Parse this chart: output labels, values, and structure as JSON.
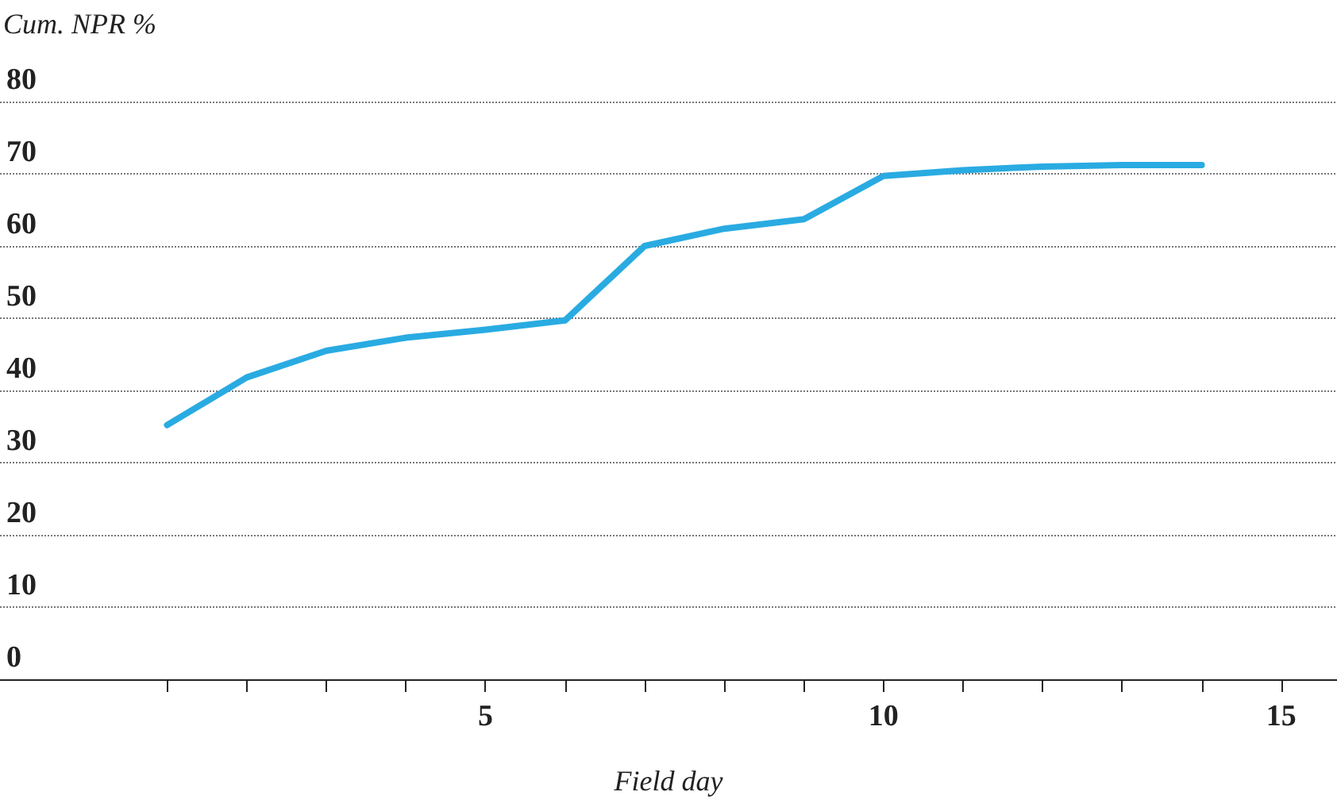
{
  "chart_data": {
    "type": "line",
    "ylabel": "Cum. NPR %",
    "xlabel": "Field day",
    "x": [
      1,
      2,
      3,
      4,
      5,
      6,
      7,
      8,
      9,
      10,
      11,
      12,
      13,
      14
    ],
    "series": [
      {
        "color": "#29abe2",
        "values": [
          35.2,
          41.8,
          45.5,
          47.3,
          48.4,
          49.7,
          60,
          62.4,
          63.7,
          69.7,
          70.5,
          71,
          71.2,
          71.2
        ]
      }
    ],
    "xlim": [
      -1.1,
      15.7
    ],
    "xticks": [
      {
        "value": 1,
        "label": null
      },
      {
        "value": 2,
        "label": null
      },
      {
        "value": 3,
        "label": null
      },
      {
        "value": 4,
        "label": null
      },
      5,
      {
        "value": 6,
        "label": null
      },
      {
        "value": 7,
        "label": null
      },
      {
        "value": 8,
        "label": null
      },
      {
        "value": 9,
        "label": null
      },
      10,
      {
        "value": 11,
        "label": null
      },
      {
        "value": 12,
        "label": null
      },
      {
        "value": 13,
        "label": null
      },
      {
        "value": 14,
        "label": null
      },
      15
    ],
    "ylim": [
      0,
      80
    ],
    "yticks": [
      0,
      10,
      20,
      30,
      40,
      50,
      60,
      70,
      80
    ],
    "grid": "y",
    "marker": "none",
    "line_style": "solid"
  }
}
